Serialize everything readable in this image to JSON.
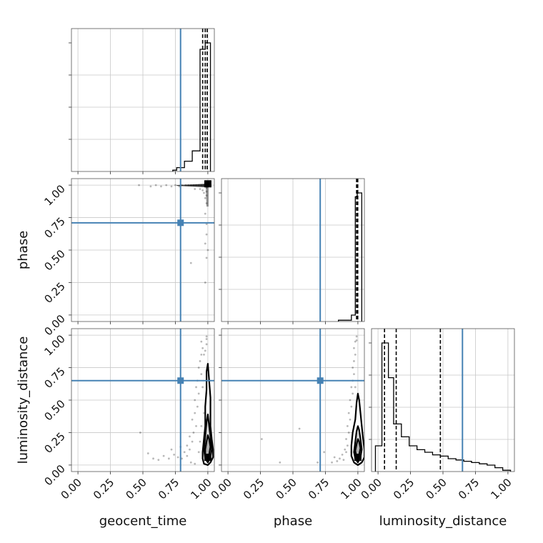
{
  "chart_data": {
    "type": "corner",
    "parameters": [
      "geocent_time",
      "phase",
      "luminosity_distance"
    ],
    "axis_labels": [
      "geocent_time",
      "phase",
      "luminosity_distance"
    ],
    "range": [
      -0.05,
      1.05
    ],
    "ticks": [
      0,
      0.25,
      0.5,
      0.75,
      1.0
    ],
    "tick_labels": [
      "0.00",
      "0.25",
      "0.50",
      "0.75",
      "1.00"
    ],
    "grid": true,
    "truths": {
      "geocent_time": 0.79,
      "phase": 0.71,
      "luminosity_distance": 0.65
    },
    "truth_color": "#4682b4",
    "histograms": {
      "geocent_time": {
        "bin_edges": [
          0.73,
          0.76,
          0.82,
          0.88,
          0.94,
          0.98,
          1.02
        ],
        "counts": [
          0.01,
          0.03,
          0.08,
          0.16,
          0.95,
          1.0
        ],
        "quantiles": [
          0.96,
          0.98,
          0.995
        ]
      },
      "phase": {
        "bin_edges": [
          0.85,
          0.95,
          0.98,
          0.995,
          1.03
        ],
        "counts": [
          0.01,
          0.05,
          0.97,
          1.0
        ],
        "quantiles": [
          0.99,
          0.997,
          0.999
        ]
      },
      "luminosity_distance": {
        "bin_edges": [
          -0.02,
          0.03,
          0.08,
          0.12,
          0.18,
          0.24,
          0.3,
          0.36,
          0.42,
          0.48,
          0.54,
          0.6,
          0.66,
          0.72,
          0.78,
          0.84,
          0.9,
          0.96,
          1.02
        ],
        "counts": [
          0.2,
          1.0,
          0.73,
          0.37,
          0.27,
          0.2,
          0.17,
          0.15,
          0.13,
          0.12,
          0.1,
          0.09,
          0.08,
          0.07,
          0.06,
          0.05,
          0.03,
          0.01
        ],
        "quantiles": [
          0.05,
          0.14,
          0.48
        ]
      }
    },
    "pairs": [
      {
        "x": "geocent_time",
        "y": "phase",
        "points": [
          [
            0.97,
            1.0
          ],
          [
            0.95,
            1.0
          ],
          [
            0.93,
            1.0
          ],
          [
            0.91,
            1.0
          ],
          [
            0.89,
            1.0
          ],
          [
            0.87,
            1.0
          ],
          [
            0.85,
            1.0
          ],
          [
            0.83,
            1.0
          ],
          [
            0.8,
            1.0
          ],
          [
            0.78,
            0.99
          ],
          [
            0.75,
            1.0
          ],
          [
            0.72,
            0.99
          ],
          [
            0.68,
            1.0
          ],
          [
            0.64,
            0.99
          ],
          [
            0.6,
            1.0
          ],
          [
            0.56,
            0.99
          ],
          [
            0.47,
            1.0
          ],
          [
            0.99,
            0.98
          ],
          [
            0.99,
            0.95
          ],
          [
            0.99,
            0.92
          ],
          [
            0.98,
            0.9
          ],
          [
            0.99,
            0.86
          ],
          [
            0.98,
            0.78
          ],
          [
            0.99,
            0.7
          ],
          [
            0.99,
            0.62
          ],
          [
            0.98,
            0.55
          ],
          [
            1.0,
            0.5
          ],
          [
            0.99,
            0.44
          ],
          [
            0.87,
            0.4
          ],
          [
            0.98,
            0.25
          ],
          [
            0.9,
            0.97
          ],
          [
            0.94,
            0.97
          ],
          [
            0.96,
            0.96
          ],
          [
            0.97,
            0.94
          ]
        ],
        "dense_band": {
          "x": [
            0.76,
            1.0
          ],
          "y": 1.0
        },
        "median_marker": [
          1.0,
          1.01
        ]
      },
      {
        "x": "geocent_time",
        "y": "luminosity_distance",
        "points": [
          [
            0.95,
            0.95
          ],
          [
            0.96,
            0.9
          ],
          [
            0.95,
            0.85
          ],
          [
            0.94,
            0.8
          ],
          [
            0.93,
            0.75
          ],
          [
            0.95,
            0.7
          ],
          [
            0.92,
            0.65
          ],
          [
            0.91,
            0.6
          ],
          [
            0.93,
            0.55
          ],
          [
            0.9,
            0.5
          ],
          [
            0.92,
            0.45
          ],
          [
            0.9,
            0.4
          ],
          [
            0.88,
            0.35
          ],
          [
            0.91,
            0.3
          ],
          [
            0.89,
            0.25
          ],
          [
            0.86,
            0.22
          ],
          [
            0.88,
            0.18
          ],
          [
            0.84,
            0.15
          ],
          [
            0.86,
            0.12
          ],
          [
            0.82,
            0.1
          ],
          [
            0.84,
            0.07
          ],
          [
            0.8,
            0.05
          ],
          [
            0.77,
            0.06
          ],
          [
            0.74,
            0.08
          ],
          [
            0.7,
            0.05
          ],
          [
            0.66,
            0.07
          ],
          [
            0.62,
            0.04
          ],
          [
            0.58,
            0.05
          ],
          [
            0.54,
            0.09
          ],
          [
            0.48,
            0.25
          ],
          [
            0.97,
            0.85
          ],
          [
            0.96,
            0.6
          ],
          [
            0.97,
            0.4
          ],
          [
            0.95,
            0.3
          ],
          [
            0.97,
            0.1
          ],
          [
            0.99,
            0.99
          ],
          [
            0.99,
            0.97
          ],
          [
            0.99,
            0.93
          ],
          [
            0.98,
            0.88
          ],
          [
            0.87,
            0.02
          ],
          [
            0.9,
            0.01
          ],
          [
            0.72,
            0.12
          ],
          [
            0.79,
            0.14
          ],
          [
            0.93,
            0.1
          ],
          [
            0.94,
            0.18
          ]
        ],
        "contours": [
          [
            [
              1.0,
              0.0
            ],
            [
              1.02,
              0.02
            ],
            [
              1.04,
              0.06
            ],
            [
              1.04,
              0.12
            ],
            [
              1.03,
              0.2
            ],
            [
              1.02,
              0.3
            ],
            [
              1.02,
              0.4
            ],
            [
              1.02,
              0.52
            ],
            [
              1.01,
              0.65
            ],
            [
              1.0,
              0.78
            ],
            [
              0.99,
              0.72
            ],
            [
              0.99,
              0.58
            ],
            [
              0.98,
              0.45
            ],
            [
              0.98,
              0.3
            ],
            [
              0.97,
              0.2
            ],
            [
              0.96,
              0.1
            ],
            [
              0.96,
              0.05
            ],
            [
              0.97,
              0.01
            ]
          ],
          [
            [
              1.0,
              0.02
            ],
            [
              1.02,
              0.06
            ],
            [
              1.03,
              0.12
            ],
            [
              1.02,
              0.22
            ],
            [
              1.01,
              0.3
            ],
            [
              1.0,
              0.39
            ],
            [
              0.99,
              0.33
            ],
            [
              0.98,
              0.22
            ],
            [
              0.97,
              0.12
            ],
            [
              0.98,
              0.05
            ]
          ],
          [
            [
              1.0,
              0.04
            ],
            [
              1.01,
              0.08
            ],
            [
              1.02,
              0.14
            ],
            [
              1.01,
              0.2
            ],
            [
              1.0,
              0.23
            ],
            [
              0.99,
              0.18
            ],
            [
              0.98,
              0.12
            ],
            [
              0.98,
              0.07
            ]
          ]
        ],
        "median_marker": [
          1.0,
          0.06
        ]
      },
      {
        "x": "phase",
        "y": "luminosity_distance",
        "points": [
          [
            0.98,
            0.95
          ],
          [
            0.97,
            0.9
          ],
          [
            0.98,
            0.85
          ],
          [
            0.97,
            0.8
          ],
          [
            0.96,
            0.75
          ],
          [
            0.97,
            0.7
          ],
          [
            0.96,
            0.65
          ],
          [
            0.95,
            0.6
          ],
          [
            0.96,
            0.55
          ],
          [
            0.94,
            0.5
          ],
          [
            0.95,
            0.45
          ],
          [
            0.93,
            0.4
          ],
          [
            0.94,
            0.35
          ],
          [
            0.92,
            0.3
          ],
          [
            0.93,
            0.25
          ],
          [
            0.91,
            0.2
          ],
          [
            0.92,
            0.15
          ],
          [
            0.9,
            0.12
          ],
          [
            0.88,
            0.08
          ],
          [
            0.86,
            0.05
          ],
          [
            0.84,
            0.03
          ],
          [
            0.82,
            0.06
          ],
          [
            0.8,
            0.02
          ],
          [
            0.74,
            0.1
          ],
          [
            0.69,
            0.02
          ],
          [
            0.55,
            0.28
          ],
          [
            0.26,
            0.2
          ],
          [
            0.4,
            0.02
          ],
          [
            0.99,
            0.99
          ],
          [
            0.99,
            0.96
          ],
          [
            0.98,
            0.6
          ],
          [
            0.99,
            0.4
          ],
          [
            0.95,
            0.1
          ],
          [
            0.96,
            0.2
          ],
          [
            0.97,
            0.3
          ],
          [
            0.89,
            0.04
          ],
          [
            0.91,
            0.1
          ]
        ],
        "contours": [
          [
            [
              1.0,
              0.0
            ],
            [
              1.03,
              0.02
            ],
            [
              1.05,
              0.06
            ],
            [
              1.05,
              0.12
            ],
            [
              1.04,
              0.2
            ],
            [
              1.03,
              0.3
            ],
            [
              1.02,
              0.4
            ],
            [
              1.01,
              0.5
            ],
            [
              1.0,
              0.55
            ],
            [
              0.99,
              0.48
            ],
            [
              0.98,
              0.35
            ],
            [
              0.96,
              0.25
            ],
            [
              0.95,
              0.15
            ],
            [
              0.95,
              0.07
            ],
            [
              0.97,
              0.02
            ]
          ],
          [
            [
              1.0,
              0.02
            ],
            [
              1.02,
              0.06
            ],
            [
              1.03,
              0.12
            ],
            [
              1.02,
              0.2
            ],
            [
              1.01,
              0.27
            ],
            [
              1.0,
              0.3
            ],
            [
              0.99,
              0.26
            ],
            [
              0.98,
              0.18
            ],
            [
              0.97,
              0.1
            ],
            [
              0.98,
              0.05
            ]
          ],
          [
            [
              1.0,
              0.04
            ],
            [
              1.01,
              0.08
            ],
            [
              1.02,
              0.13
            ],
            [
              1.01,
              0.18
            ],
            [
              1.0,
              0.2
            ],
            [
              0.99,
              0.16
            ],
            [
              0.98,
              0.11
            ],
            [
              0.99,
              0.06
            ]
          ]
        ],
        "median_marker": [
          1.0,
          0.06
        ]
      }
    ]
  }
}
